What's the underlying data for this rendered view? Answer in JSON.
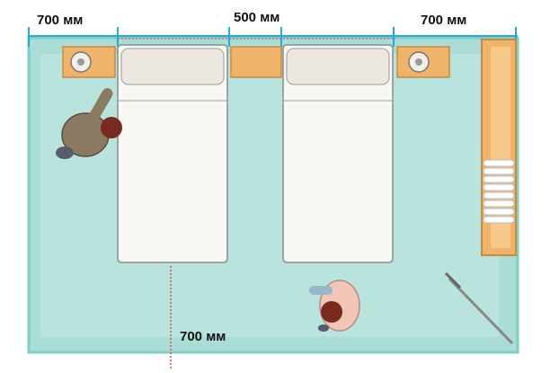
{
  "dimensions": {
    "left_nightstand_gap": "700 мм",
    "between_beds_gap": "500 мм",
    "right_nightstand_gap": "700 мм",
    "foot_of_bed_gap": "700 мм"
  },
  "colors": {
    "floor": "#a9ddd6",
    "floor_border": "#7fcfc6",
    "wood": "#f0b36a",
    "bed_sheet": "#f7f7f4",
    "pillow": "#ece8df",
    "dimension_line": "#2aa9e0",
    "guide_dotted": "#e04a3a",
    "text": "#111111",
    "person_shirt_1": "#8a7a62",
    "person_shirt_2": "#f2c6b6",
    "hair": "#7a2a1e"
  },
  "icons": {
    "lamp": "lamp-icon",
    "person": "person-icon",
    "door": "door-icon"
  }
}
